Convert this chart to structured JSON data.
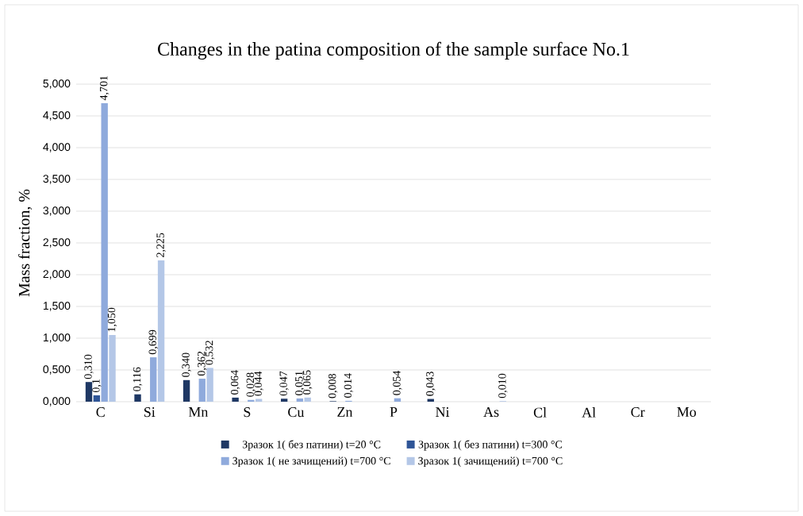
{
  "chart_data": {
    "type": "bar",
    "title": "Changes in the patina composition of the sample surface No.1",
    "ylabel": "Mass fraction, %",
    "categories": [
      "C",
      "Si",
      "Mn",
      "S",
      "Cu",
      "Zn",
      "P",
      "Ni",
      "As",
      "Cl",
      "Al",
      "Cr",
      "Mo"
    ],
    "series": [
      {
        "name": "Зразок 1( без патини) t=20 °C",
        "color": "#1f3864",
        "values": [
          0.31,
          0.116,
          0.34,
          0.064,
          0.047,
          0.008,
          null,
          0.043,
          null,
          null,
          null,
          null,
          null
        ],
        "value_labels": [
          "0,310",
          "0,116",
          "0,340",
          "0,064",
          "0,047",
          "0,008",
          null,
          "0,043",
          null,
          null,
          null,
          null,
          null
        ]
      },
      {
        "name": "Зразок 1( без патини) t=300 °C",
        "color": "#2f5597",
        "values": [
          0.1,
          null,
          null,
          null,
          null,
          null,
          null,
          null,
          null,
          null,
          null,
          null,
          null
        ],
        "value_labels": [
          "0,1",
          null,
          null,
          null,
          null,
          null,
          null,
          null,
          null,
          null,
          null,
          null,
          null
        ]
      },
      {
        "name": "Зразок 1( не зачищений) t=700 °C",
        "color": "#8faadc",
        "values": [
          4.701,
          0.699,
          0.362,
          0.028,
          0.051,
          0.014,
          0.054,
          null,
          null,
          null,
          null,
          null,
          null
        ],
        "value_labels": [
          "4,701",
          "0,699",
          "0,362",
          "0,028",
          "0,051",
          "0,014",
          "0,054",
          null,
          null,
          null,
          null,
          null,
          null
        ]
      },
      {
        "name": "Зразок 1( зачищений) t=700 °C",
        "color": "#b4c7e7",
        "values": [
          1.05,
          2.225,
          0.532,
          0.044,
          0.065,
          null,
          null,
          null,
          0.01,
          null,
          null,
          null,
          null
        ],
        "value_labels": [
          "1,050",
          "2,225",
          "0,532",
          "0,044",
          "0,065",
          null,
          null,
          null,
          "0,010",
          null,
          null,
          null,
          null
        ]
      }
    ],
    "ylim": [
      0,
      5
    ],
    "yticks": [
      {
        "value": 0,
        "label": "0,000"
      },
      {
        "value": 0.5,
        "label": "0,500"
      },
      {
        "value": 1,
        "label": "1,000"
      },
      {
        "value": 1.5,
        "label": "1,500"
      },
      {
        "value": 2,
        "label": "2,000"
      },
      {
        "value": 2.5,
        "label": "2,500"
      },
      {
        "value": 3,
        "label": "3,000"
      },
      {
        "value": 3.5,
        "label": "3,500"
      },
      {
        "value": 4,
        "label": "4,000"
      },
      {
        "value": 4.5,
        "label": "4,500"
      },
      {
        "value": 5,
        "label": "5,000"
      }
    ],
    "grid": "y",
    "legend": "bottom"
  }
}
